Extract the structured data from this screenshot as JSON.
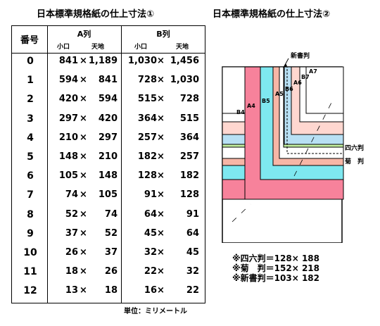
{
  "title_left": "日本標準規格紙の仕上寸法①",
  "title_right": "日本標準規格紙の仕上寸法②",
  "table": {
    "header_number": "番号",
    "header_a": "A列",
    "header_b": "B列",
    "sub_short": "小口",
    "sub_long": "天地",
    "rows": [
      {
        "no": "0",
        "a1": "841",
        "a2": "1,189",
        "b1": "1,030",
        "b2": "1,456"
      },
      {
        "no": "1",
        "a1": "594",
        "a2": "841",
        "b1": "728",
        "b2": "1,030"
      },
      {
        "no": "2",
        "a1": "420",
        "a2": "594",
        "b1": "515",
        "b2": "728"
      },
      {
        "no": "3",
        "a1": "297",
        "a2": "420",
        "b1": "364",
        "b2": "515"
      },
      {
        "no": "4",
        "a1": "210",
        "a2": "297",
        "b1": "257",
        "b2": "364"
      },
      {
        "no": "5",
        "a1": "148",
        "a2": "210",
        "b1": "182",
        "b2": "257"
      },
      {
        "no": "6",
        "a1": "105",
        "a2": "148",
        "b1": "128",
        "b2": "182"
      },
      {
        "no": "7",
        "a1": "74",
        "a2": "105",
        "b1": "91",
        "b2": "128"
      },
      {
        "no": "8",
        "a1": "52",
        "a2": "74",
        "b1": "64",
        "b2": "91"
      },
      {
        "no": "9",
        "a1": "37",
        "a2": "52",
        "b1": "45",
        "b2": "64"
      },
      {
        "no": "10",
        "a1": "26",
        "a2": "37",
        "b1": "32",
        "b2": "45"
      },
      {
        "no": "11",
        "a1": "18",
        "a2": "26",
        "b1": "22",
        "b2": "32"
      },
      {
        "no": "12",
        "a1": "13",
        "a2": "18",
        "b1": "16",
        "b2": "22"
      }
    ],
    "times": "×"
  },
  "unit": "単位：ミリメートル",
  "diagram": {
    "labels": {
      "B4": "B4",
      "A4": "A4",
      "B5": "B5",
      "A5": "A5",
      "B6": "B6",
      "A6": "A6",
      "B7": "B7",
      "A7": "A7",
      "shinsho": "新書判",
      "shiroku": "四六判",
      "kiku": "菊　判"
    },
    "colors": {
      "A4": "#f7829b",
      "B5": "#7ee8f0",
      "A5": "#f7b6a6",
      "B6": "#b8e0f4",
      "A6": "#ffd7d0",
      "shiroku": "#c4f0a0",
      "kiku": "#f4a07a"
    }
  },
  "notes": [
    "※四六判＝128× 188",
    "※菊　判＝152× 218",
    "※新書判＝103× 182"
  ]
}
